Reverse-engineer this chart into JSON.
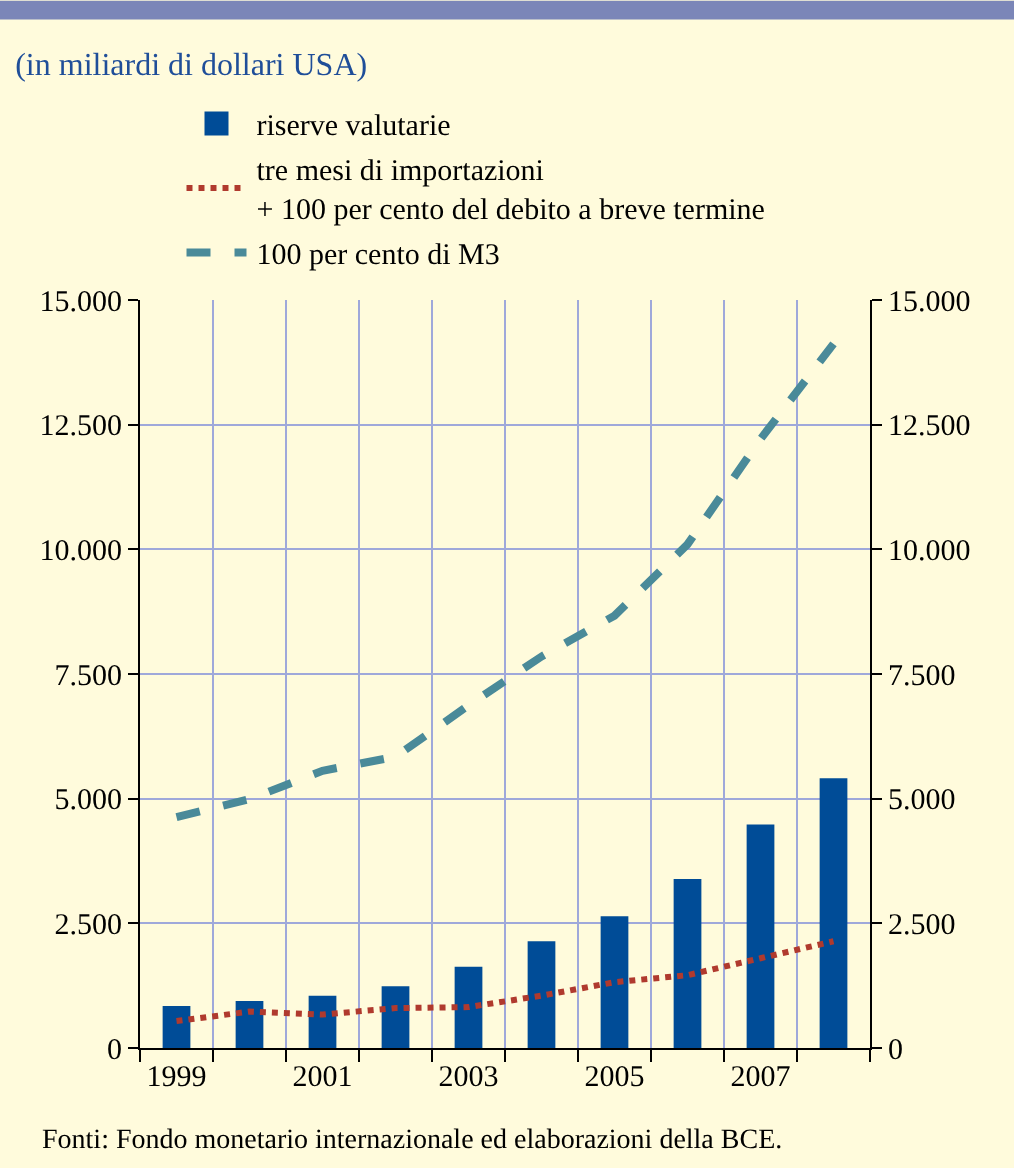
{
  "chart_data": {
    "type": "bar",
    "title": "(in miliardi di dollari USA)",
    "categories": [
      "1999",
      null,
      "2001",
      null,
      "2003",
      null,
      "2005",
      null,
      "2007",
      null
    ],
    "series": [
      {
        "name": "riserve valutarie",
        "color": "#004c97",
        "values": [
          840,
          940,
          1050,
          1240,
          1630,
          2140,
          2640,
          3390,
          4480,
          5410
        ]
      },
      {
        "name": "tre mesi di importazioni\n+ 100 per cento del debito a breve termine",
        "type": "line",
        "line_style": "dotted",
        "color": "#b03a2e",
        "values": [
          540,
          730,
          670,
          800,
          820,
          1050,
          1320,
          1460,
          1800,
          2140
        ]
      },
      {
        "name": "100 per cento di M3",
        "type": "line",
        "line_style": "dashed",
        "color": "#4a8a99",
        "values": [
          4630,
          4990,
          5560,
          5840,
          6870,
          7850,
          8670,
          10100,
          12210,
          14120
        ]
      }
    ],
    "ylim": [
      0,
      15000
    ],
    "yticks": [
      {
        "value": 0,
        "label": "0"
      },
      {
        "value": 2500,
        "label": "2.500"
      },
      {
        "value": 5000,
        "label": "5.000"
      },
      {
        "value": 7500,
        "label": "7.500"
      },
      {
        "value": 10000,
        "label": "10.000"
      },
      {
        "value": 12500,
        "label": "12.500"
      },
      {
        "value": 15000,
        "label": "15.000"
      }
    ],
    "y2lim": [
      0,
      15000
    ],
    "y2ticks": [
      {
        "value": 0,
        "label": "0"
      },
      {
        "value": 2500,
        "label": "2.500"
      },
      {
        "value": 5000,
        "label": "5.000"
      },
      {
        "value": 7500,
        "label": "7.500"
      },
      {
        "value": 10000,
        "label": "10.000"
      },
      {
        "value": 12500,
        "label": "12.500"
      },
      {
        "value": 15000,
        "label": "15.000"
      }
    ],
    "grid": true,
    "legend": "top",
    "annotations": [
      "Fonti: Fondo monetario internazionale ed elaborazioni della BCE."
    ]
  }
}
